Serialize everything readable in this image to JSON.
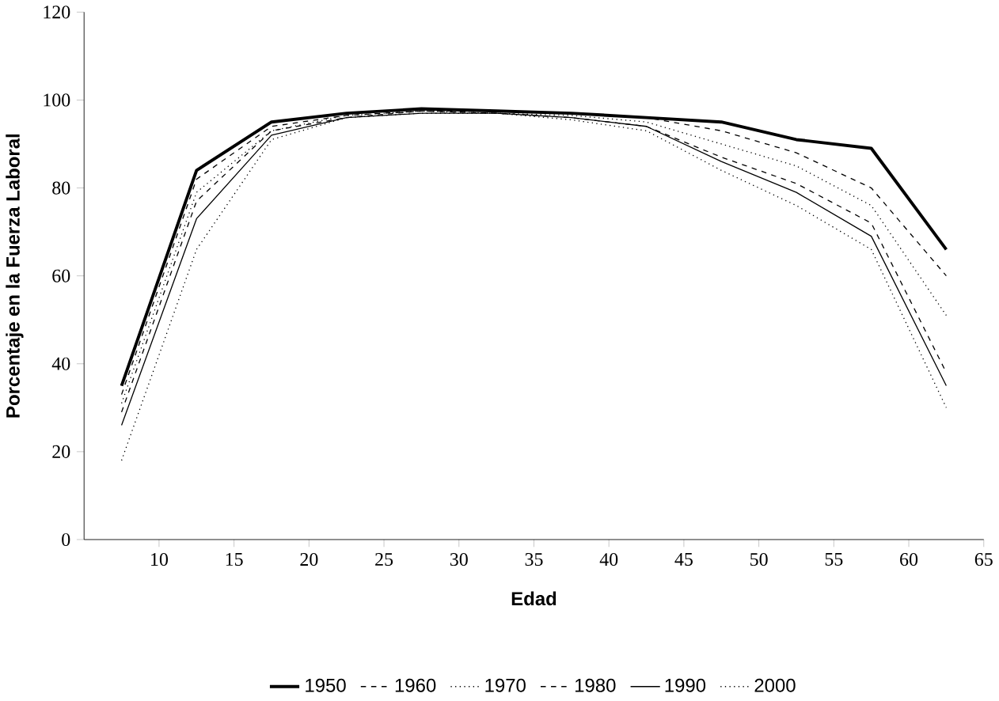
{
  "chart_data": {
    "type": "line",
    "xlabel": "Edad",
    "ylabel": "Porcentaje en la Fuerza Laboral",
    "x": [
      7.5,
      12.5,
      17.5,
      22.5,
      27.5,
      32.5,
      37.5,
      42.5,
      47.5,
      52.5,
      57.5,
      62.5
    ],
    "xlim": [
      5,
      65
    ],
    "xticks": [
      10,
      15,
      20,
      25,
      30,
      35,
      40,
      45,
      50,
      55,
      60,
      65
    ],
    "ylim": [
      0,
      120
    ],
    "yticks": [
      0,
      20,
      40,
      60,
      80,
      100,
      120
    ],
    "grid": false,
    "legend": "bottom",
    "marker": "none",
    "series": [
      {
        "name": "1950",
        "color": "#000000",
        "line_style": "solid",
        "values": [
          35,
          84,
          95,
          97,
          98,
          97.5,
          97,
          96,
          95,
          91,
          89,
          66
        ]
      },
      {
        "name": "1960",
        "color": "#000000",
        "line_style": "dashed",
        "values": [
          33,
          82,
          94,
          96.5,
          97.5,
          97.5,
          97,
          96,
          93,
          88,
          80,
          60
        ]
      },
      {
        "name": "1970",
        "color": "#000000",
        "line_style": "dotted",
        "values": [
          31,
          79,
          93,
          96.5,
          97.5,
          97,
          96.5,
          95,
          90,
          85,
          76,
          51
        ]
      },
      {
        "name": "1980",
        "color": "#000000",
        "line_style": "dashed",
        "values": [
          29,
          77,
          93,
          96,
          97.5,
          97,
          96,
          94,
          87,
          81,
          72,
          38
        ]
      },
      {
        "name": "1990",
        "color": "#000000",
        "line_style": "solid",
        "values": [
          26,
          73,
          92,
          96,
          97,
          97,
          96,
          94,
          86,
          79,
          69,
          35
        ]
      },
      {
        "name": "2000",
        "color": "#000000",
        "line_style": "dotted",
        "values": [
          18,
          66,
          91,
          96,
          97,
          97,
          95.5,
          93,
          84,
          76,
          66,
          30
        ]
      }
    ]
  }
}
